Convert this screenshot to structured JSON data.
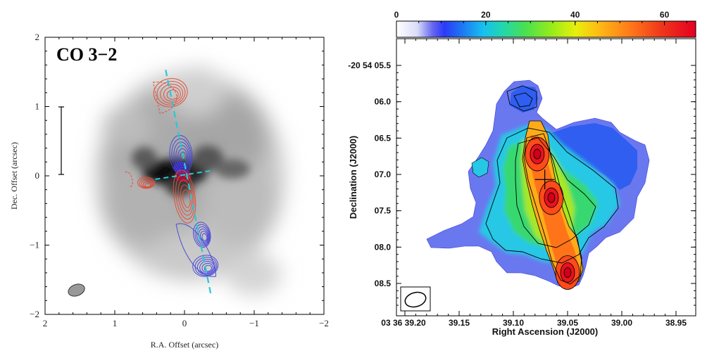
{
  "chart_data": [
    {
      "type": "heatmap",
      "title": "CO 3−2",
      "xlabel": "R.A. Offset (arcsec)",
      "ylabel": "Dec. Offset (arcsec)",
      "xlim": [
        2,
        -2
      ],
      "ylim": [
        -2,
        2
      ],
      "xticks": [
        2,
        1,
        0,
        -1,
        -2
      ],
      "yticks": [
        2,
        1,
        0,
        -1,
        -2
      ],
      "xtick_labels": [
        "2",
        "1",
        "0",
        "−1",
        "−2"
      ],
      "ytick_labels": [
        "2",
        "1",
        "0",
        "−1",
        "−2"
      ],
      "colors": {
        "redshifted": "#e0503c",
        "blueshifted": "#4a4ad8",
        "axis_line": "#27c9d6"
      },
      "outflow_axis": [
        [
          0.27,
          1.53
        ],
        [
          -0.38,
          -1.72
        ]
      ],
      "disk_axis": [
        [
          0.42,
          -0.05
        ],
        [
          -0.42,
          0.08
        ]
      ],
      "red_lobes": [
        {
          "x": 0.2,
          "y": 1.2
        },
        {
          "x": 0.0,
          "y": -0.3
        },
        {
          "x": 0.55,
          "y": -0.1
        }
      ],
      "blue_lobes": [
        {
          "x": 0.05,
          "y": 0.3
        },
        {
          "x": -0.25,
          "y": -0.85
        },
        {
          "x": -0.3,
          "y": -1.3
        }
      ],
      "beam": {
        "x": 1.55,
        "y": -1.65
      }
    },
    {
      "type": "heatmap",
      "xlabel": "Right Ascension (J2000)",
      "ylabel": "Declination (J2000)",
      "x_tick_labels": [
        "03 36 39.20",
        "39.15",
        "39.10",
        "39.05",
        "39.00",
        "38.95"
      ],
      "y_tick_labels": [
        "-20 54 05.5",
        "06.0",
        "06.5",
        "07.0",
        "07.5",
        "08.0",
        "08.5"
      ],
      "colorbar": {
        "min": 0,
        "max": 67,
        "ticks": [
          0,
          20,
          40,
          60
        ]
      },
      "peaks": [
        {
          "ra_s": 39.078,
          "dec_s": 6.72,
          "value": 63
        },
        {
          "ra_s": 39.065,
          "dec_s": 7.32,
          "value": 60
        },
        {
          "ra_s": 39.05,
          "dec_s": 8.35,
          "value": 52
        }
      ],
      "center_cross": {
        "ra_s": 39.071,
        "dec_s": 7.07
      }
    }
  ]
}
